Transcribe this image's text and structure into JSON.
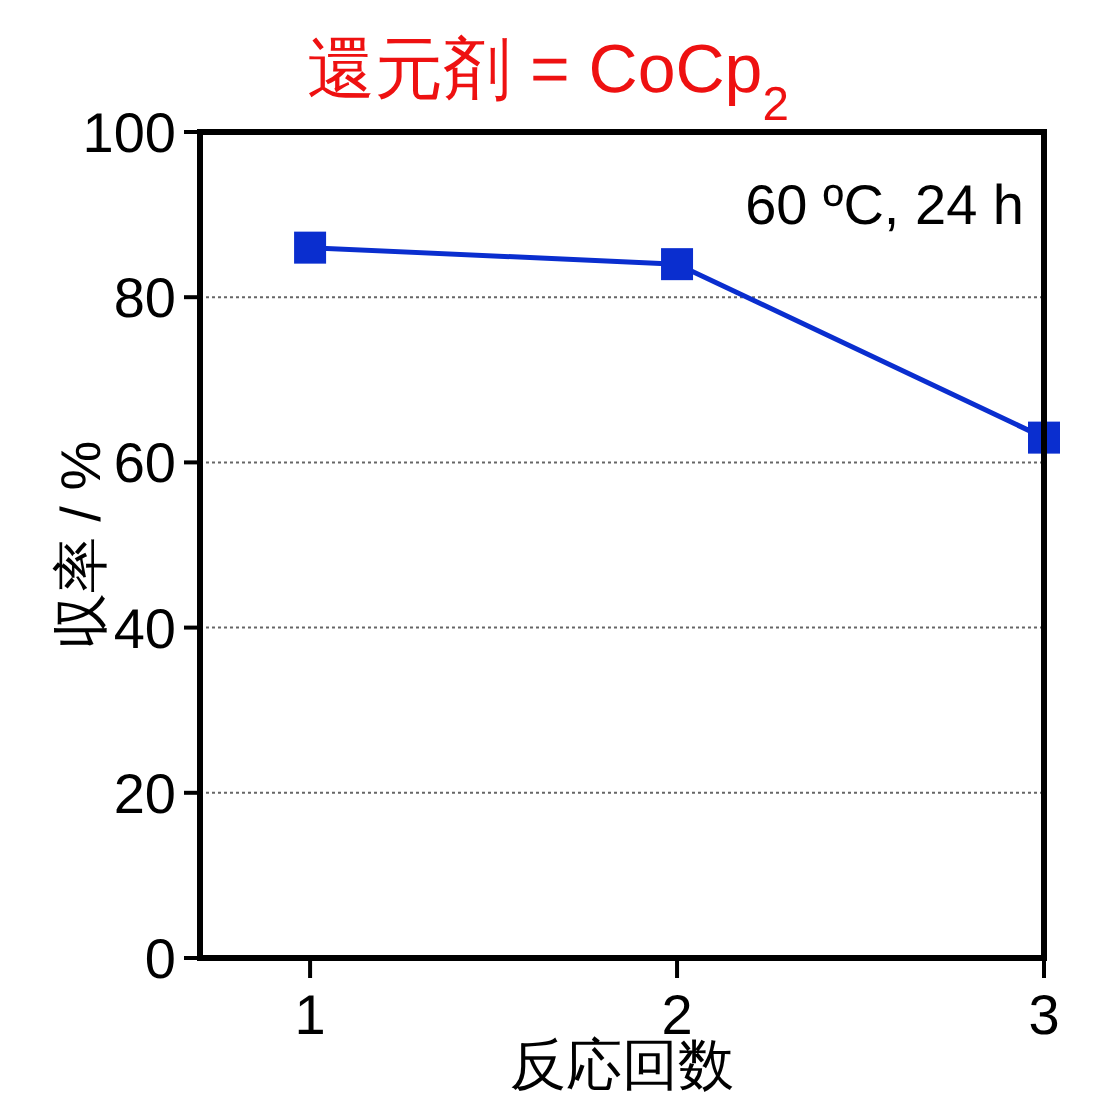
{
  "chart_data": {
    "type": "line",
    "title": "還元剤 = CoCp$_{2}$",
    "xlabel": "反応回数",
    "ylabel": "収率 / %",
    "annotations": [
      "60 ºC, 24 h"
    ],
    "x": [
      1,
      2,
      3
    ],
    "series": [
      {
        "color": "#0a2ecf",
        "values": [
          86,
          84,
          63
        ]
      }
    ],
    "xlim": [
      0.7,
      3
    ],
    "xticks": [
      1,
      2,
      3
    ],
    "ylim": [
      0,
      100
    ],
    "yticks": [
      0,
      20,
      40,
      60,
      80,
      100
    ],
    "grid": "y",
    "marker": "square",
    "line_style": "solid"
  }
}
